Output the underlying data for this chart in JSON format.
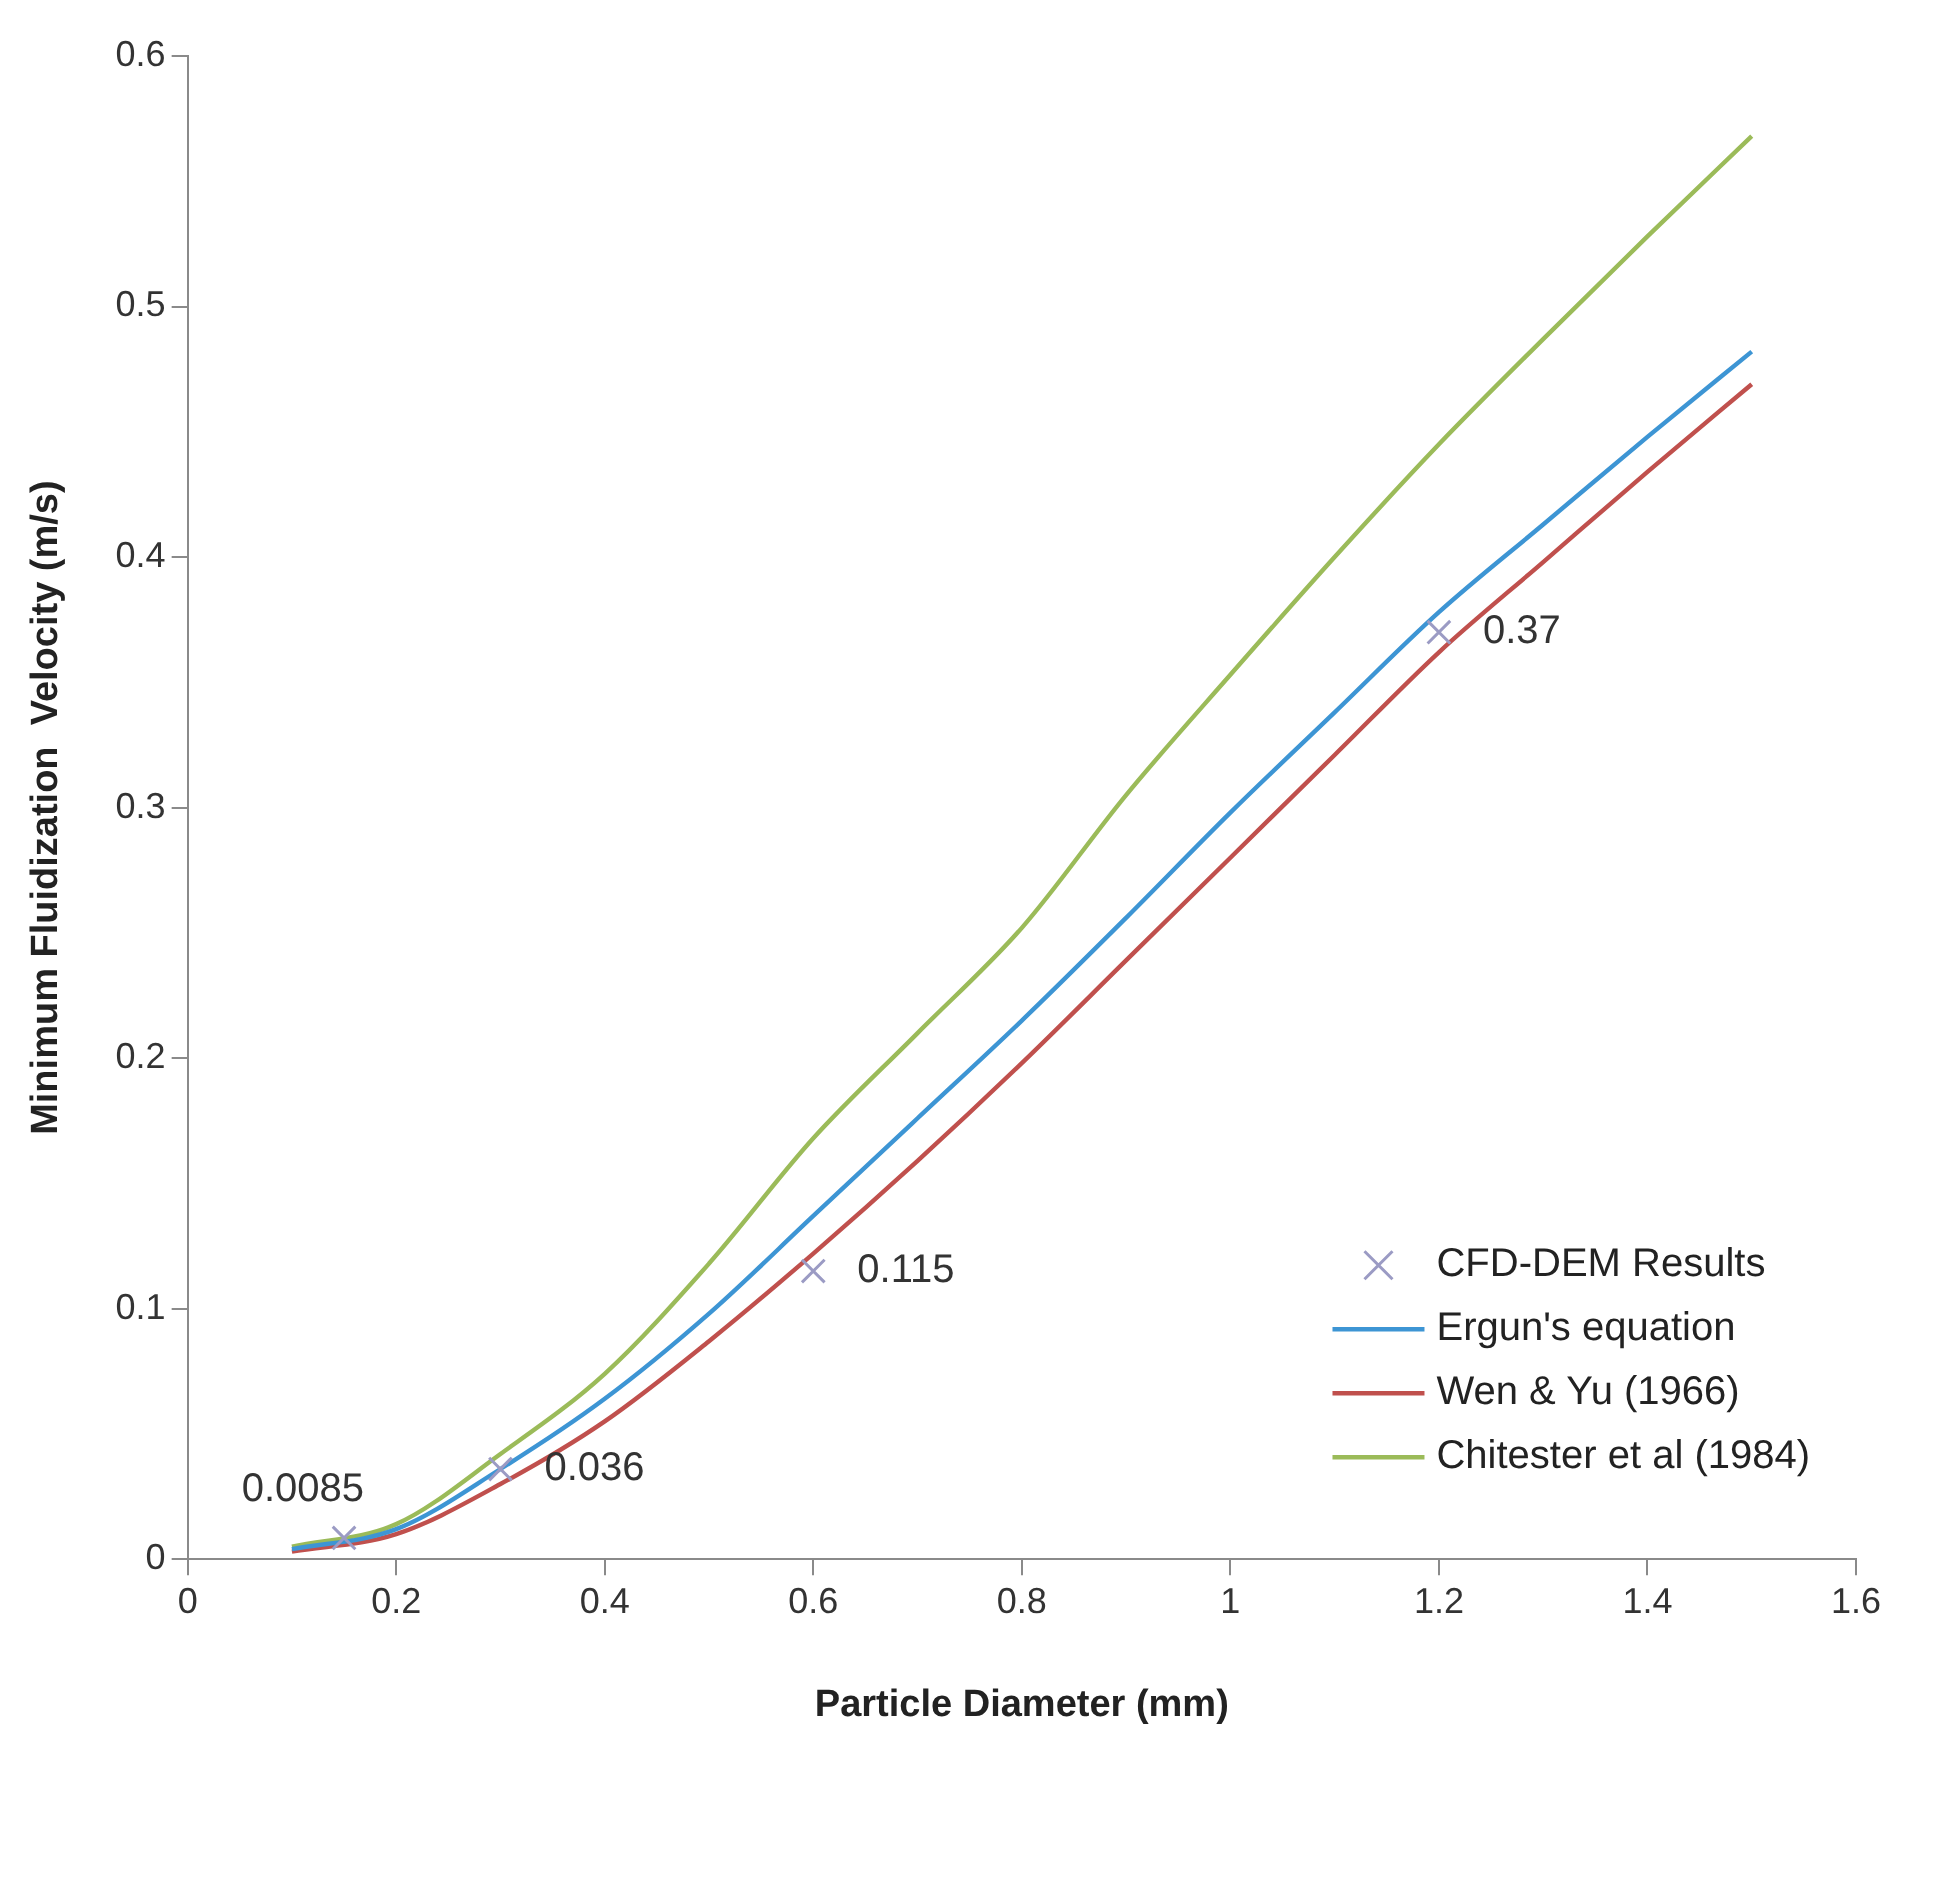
{
  "chart_data": {
    "type": "line",
    "xlabel": "Particle Diameter (mm)",
    "ylabel": "Minimum Fluidization  Velocity (m/s)",
    "xlim": [
      0,
      1.6
    ],
    "xticks": [
      0,
      0.2,
      0.4,
      0.6,
      0.8,
      1,
      1.2,
      1.4,
      1.6
    ],
    "ylim": [
      0,
      0.6
    ],
    "yticks": [
      0,
      0.1,
      0.2,
      0.3,
      0.4,
      0.5,
      0.6
    ],
    "grid": false,
    "legend": "bottom right",
    "series": [
      {
        "name": "CFD-DEM Results",
        "type": "scatter",
        "marker": "cross",
        "color": "#9b9bc4",
        "data_labels": true,
        "x": [
          0.15,
          0.3,
          0.6,
          1.2
        ],
        "values": [
          0.0085,
          0.036,
          0.115,
          0.37
        ]
      },
      {
        "name": "Ergun's equation",
        "marker": "none",
        "color": "#3d95d4",
        "x": [
          0.1,
          0.2,
          0.3,
          0.4,
          0.5,
          0.6,
          0.7,
          0.8,
          0.9,
          1.0,
          1.1,
          1.2,
          1.3,
          1.4,
          1.5
        ],
        "values": [
          0.004,
          0.012,
          0.036,
          0.064,
          0.098,
          0.137,
          0.176,
          0.215,
          0.256,
          0.298,
          0.338,
          0.378,
          0.413,
          0.448,
          0.482
        ]
      },
      {
        "name": "Wen & Yu (1966)",
        "marker": "none",
        "color": "#c0504d",
        "x": [
          0.1,
          0.2,
          0.3,
          0.4,
          0.5,
          0.6,
          0.7,
          0.8,
          0.9,
          1.0,
          1.1,
          1.2,
          1.3,
          1.4,
          1.5
        ],
        "values": [
          0.003,
          0.01,
          0.03,
          0.055,
          0.087,
          0.122,
          0.159,
          0.198,
          0.239,
          0.28,
          0.321,
          0.362,
          0.398,
          0.434,
          0.469
        ]
      },
      {
        "name": "Chitester et al (1984)",
        "marker": "none",
        "color": "#9bbb59",
        "x": [
          0.1,
          0.2,
          0.3,
          0.4,
          0.5,
          0.6,
          0.7,
          0.8,
          0.9,
          1.0,
          1.1,
          1.2,
          1.3,
          1.4,
          1.5
        ],
        "values": [
          0.005,
          0.014,
          0.042,
          0.074,
          0.118,
          0.168,
          0.21,
          0.252,
          0.305,
          0.353,
          0.4,
          0.445,
          0.487,
          0.528,
          0.568
        ]
      }
    ]
  }
}
